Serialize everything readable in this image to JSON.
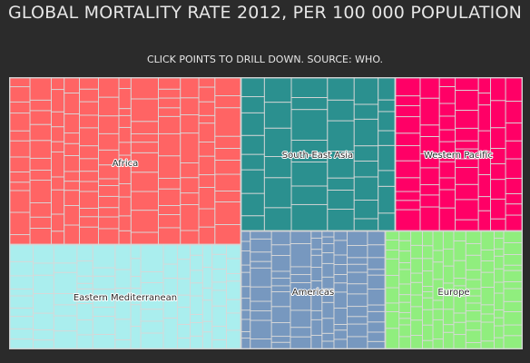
{
  "chart_data": {
    "type": "treemap",
    "title": "GLOBAL MORTALITY RATE 2012, PER 100 000 POPULATION",
    "subtitle": "CLICK POINTS TO DRILL DOWN. SOURCE: WHO.",
    "regions": [
      {
        "name": "Africa",
        "color": "#ff6464"
      },
      {
        "name": "South-East Asia",
        "color": "#2b908f"
      },
      {
        "name": "Western Pacific",
        "color": "#ff0066"
      },
      {
        "name": "Eastern Mediterranean",
        "color": "#aaeeee"
      },
      {
        "name": "Americas",
        "color": "#7798bf"
      },
      {
        "name": "Europe",
        "color": "#90ee7e"
      }
    ]
  }
}
